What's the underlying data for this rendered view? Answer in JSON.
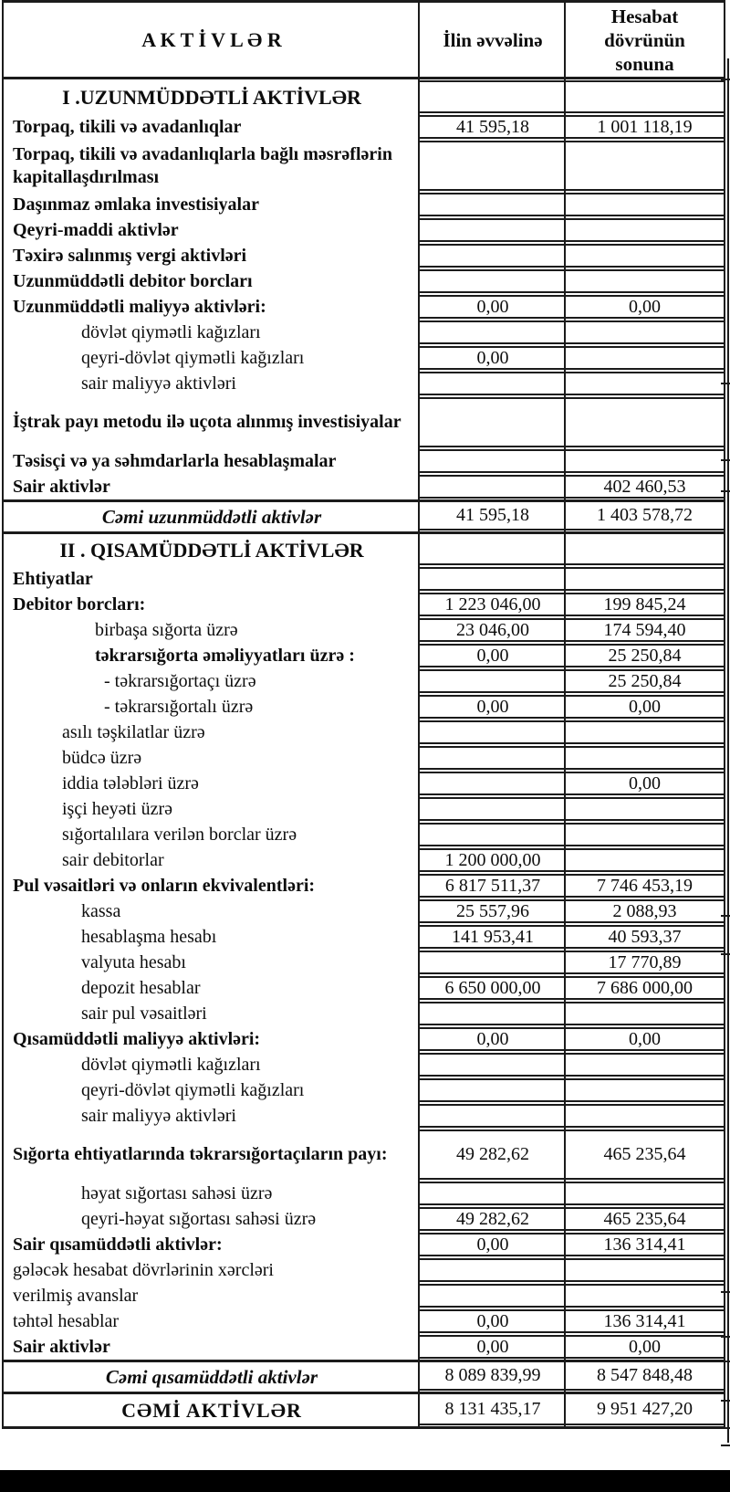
{
  "table": {
    "header": {
      "assets": "A K T İ V L Ə R",
      "beginning_of_year": "İlin əvvəlinə",
      "end_of_period": "Hesabat dövrünün sonuna"
    },
    "rows": [
      {
        "label": "I .UZUNMÜDDƏTLİ AKTİVLƏR",
        "begin": "",
        "end": "",
        "type": "section"
      },
      {
        "label": "Torpaq, tikili və avadanlıqlar",
        "begin": "41 595,18",
        "end": "1 001 118,19",
        "type": "item"
      },
      {
        "label": "Torpaq, tikili və avadanlıqlarla bağlı məsrəflərin kapitallaşdırılması",
        "begin": "",
        "end": "",
        "type": "item",
        "lines": 2
      },
      {
        "label": "Daşınmaz əmlaka investisiyalar",
        "begin": "",
        "end": "",
        "type": "item"
      },
      {
        "label": "Qeyri-maddi aktivlər",
        "begin": "",
        "end": "",
        "type": "item"
      },
      {
        "label": "Təxirə salınmış vergi aktivləri",
        "begin": "",
        "end": "",
        "type": "item"
      },
      {
        "label": "Uzunmüddətli debitor borcları",
        "begin": "",
        "end": "",
        "type": "item"
      },
      {
        "label": "Uzunmüddətli maliyyə aktivləri:",
        "begin": "0,00",
        "end": "0,00",
        "type": "item"
      },
      {
        "label": "dövlət qiymətli kağızları",
        "begin": "",
        "end": "",
        "type": "sub",
        "indent": 2
      },
      {
        "label": "qeyri-dövlət qiymətli kağızları",
        "begin": "0,00",
        "end": "",
        "type": "sub",
        "indent": 2
      },
      {
        "label": "sair maliyyə aktivləri",
        "begin": "",
        "end": "",
        "type": "sub",
        "indent": 2
      },
      {
        "label": "İştrak payı metodu ilə uçota alınmış investisiyalar",
        "begin": "",
        "end": "",
        "type": "item",
        "lines": 2
      },
      {
        "label": "Təsisçi və ya səhmdarlarla hesablaşmalar",
        "begin": "",
        "end": "",
        "type": "item"
      },
      {
        "label": "Sair aktivlər",
        "begin": "",
        "end": "402 460,53",
        "type": "item"
      },
      {
        "label": "Cəmi uzunmüddətli aktivlər",
        "begin": "41 595,18",
        "end": "1 403 578,72",
        "type": "total",
        "topline": true
      },
      {
        "label": "II . QISAMÜDDƏTLİ AKTİVLƏR",
        "begin": "",
        "end": "",
        "type": "section",
        "topline": true
      },
      {
        "label": "Ehtiyatlar",
        "begin": "",
        "end": "",
        "type": "item"
      },
      {
        "label": "Debitor borcları:",
        "begin": "1 223 046,00",
        "end": "199 845,24",
        "type": "item"
      },
      {
        "label": "birbaşa sığorta üzrə",
        "begin": "23 046,00",
        "end": "174 594,40",
        "type": "sub",
        "indent": 3
      },
      {
        "label": "təkrarsığorta əməliyyatları üzrə :",
        "begin": "0,00",
        "end": "25 250,84",
        "type": "sub",
        "indent": 3,
        "bold": true
      },
      {
        "label": "- təkrarsığortaçı üzrə",
        "begin": "",
        "end": "25 250,84",
        "type": "sub",
        "indent": 4
      },
      {
        "label": "- təkrarsığortalı üzrə",
        "begin": "0,00",
        "end": "0,00",
        "type": "sub",
        "indent": 4
      },
      {
        "label": "asılı təşkilatlar üzrə",
        "begin": "",
        "end": "",
        "type": "sub",
        "indent": 1
      },
      {
        "label": "büdcə üzrə",
        "begin": "",
        "end": "",
        "type": "sub",
        "indent": 1
      },
      {
        "label": "iddia tələbləri üzrə",
        "begin": "",
        "end": "0,00",
        "type": "sub",
        "indent": 1
      },
      {
        "label": "işçi heyəti üzrə",
        "begin": "",
        "end": "",
        "type": "sub",
        "indent": 1
      },
      {
        "label": "sığortalılara verilən borclar üzrə",
        "begin": "",
        "end": "",
        "type": "sub",
        "indent": 1
      },
      {
        "label": "sair debitorlar",
        "begin": "1 200 000,00",
        "end": "",
        "type": "sub",
        "indent": 1
      },
      {
        "label": "Pul vəsaitləri və onların ekvivalentləri:",
        "begin": "6 817 511,37",
        "end": "7 746 453,19",
        "type": "item"
      },
      {
        "label": "kassa",
        "begin": "25 557,96",
        "end": "2 088,93",
        "type": "sub",
        "indent": 2
      },
      {
        "label": "hesablaşma hesabı",
        "begin": "141 953,41",
        "end": "40 593,37",
        "type": "sub",
        "indent": 2
      },
      {
        "label": "valyuta hesabı",
        "begin": "",
        "end": "17 770,89",
        "type": "sub",
        "indent": 2
      },
      {
        "label": "depozit hesablar",
        "begin": "6 650 000,00",
        "end": "7 686 000,00",
        "type": "sub",
        "indent": 2
      },
      {
        "label": "sair pul vəsaitləri",
        "begin": "",
        "end": "",
        "type": "sub",
        "indent": 2
      },
      {
        "label": "Qısamüddətli maliyyə aktivləri:",
        "begin": "0,00",
        "end": "0,00",
        "type": "item"
      },
      {
        "label": "dövlət qiymətli kağızları",
        "begin": "",
        "end": "",
        "type": "sub",
        "indent": 2
      },
      {
        "label": "qeyri-dövlət qiymətli kağızları",
        "begin": "",
        "end": "",
        "type": "sub",
        "indent": 2
      },
      {
        "label": "sair maliyyə aktivləri",
        "begin": "",
        "end": "",
        "type": "sub",
        "indent": 2
      },
      {
        "label": "Sığorta ehtiyatlarında təkrarsığortaçıların payı:",
        "begin": "49 282,62",
        "end": "465 235,64",
        "type": "item",
        "lines": 2
      },
      {
        "label": "həyat sığortası sahəsi üzrə",
        "begin": "",
        "end": "",
        "type": "sub",
        "indent": 2
      },
      {
        "label": "qeyri-həyat sığortası sahəsi üzrə",
        "begin": "49 282,62",
        "end": "465 235,64",
        "type": "sub",
        "indent": 2
      },
      {
        "label": "Sair qısamüddətli aktivlər:",
        "begin": "0,00",
        "end": "136 314,41",
        "type": "item"
      },
      {
        "label": "gələcək hesabat dövrlərinin xərcləri",
        "begin": "",
        "end": "",
        "type": "plain"
      },
      {
        "label": "verilmiş avanslar",
        "begin": "",
        "end": "",
        "type": "plain"
      },
      {
        "label": "təhtəl hesablar",
        "begin": "0,00",
        "end": "136 314,41",
        "type": "plain"
      },
      {
        "label": "Sair aktivlər",
        "begin": "0,00",
        "end": "0,00",
        "type": "item"
      },
      {
        "label": "Cəmi qısamüddətli aktivlər",
        "begin": "8 089 839,99",
        "end": "8 547 848,48",
        "type": "total",
        "topline": true
      },
      {
        "label": "CƏMİ AKTİVLƏR",
        "begin": "8 131 435,17",
        "end": "9 951 427,20",
        "type": "grand",
        "topline": true
      }
    ]
  },
  "colors": {
    "line": "#1b1b1b",
    "text": "#0d0d0d",
    "footer_bar": "#000000"
  }
}
